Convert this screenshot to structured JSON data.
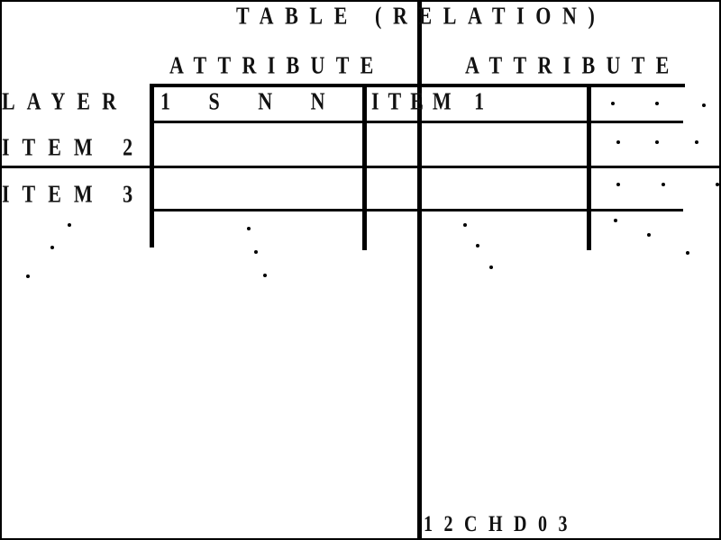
{
  "title": "TABLE (RELATION)",
  "attribute_labels": [
    "ATTRIBUTE",
    "ATTRIBUTE"
  ],
  "row_labels": [
    "LAYER",
    "ITEM 2",
    "ITEM 3"
  ],
  "first_row_cells": [
    "1 S N N",
    "ITEM 1"
  ],
  "footer_code": "12CHD03",
  "colors": {
    "ink": "#000000",
    "background": "#ffffff"
  }
}
